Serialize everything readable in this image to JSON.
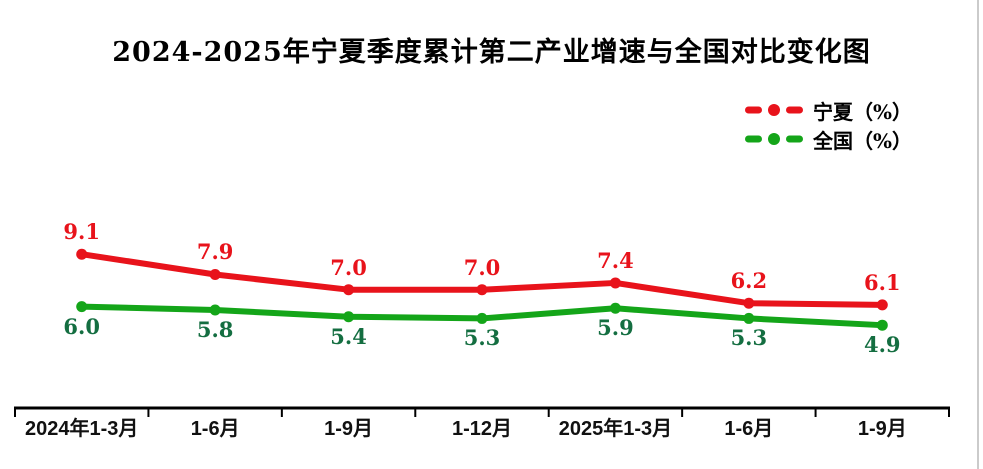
{
  "title": "2024-2025年宁夏季度累计第二产业增速与全国对比变化图",
  "colors": {
    "ningxia_line": "#e8131b",
    "ningxia_label": "#e8131b",
    "national_line": "#14a519",
    "national_label": "#146e41",
    "axis": "#000000",
    "window_border": "#cbcbcb",
    "background": "#ffffff"
  },
  "legend": {
    "position": "top-right",
    "items": [
      {
        "label": "宁夏（%）",
        "color": "#e8131b"
      },
      {
        "label": "全国（%）",
        "color": "#14a519"
      }
    ]
  },
  "chart_data": {
    "type": "line",
    "title": "2024-2025年宁夏季度累计第二产业增速与全国对比变化图",
    "categories": [
      "2024年1-3月",
      "1-6月",
      "1-9月",
      "1-12月",
      "2025年1-3月",
      "1-6月",
      "1-9月"
    ],
    "series": [
      {
        "name": "宁夏（%）",
        "key": "ningxia",
        "color": "#e8131b",
        "label_color": "#e8131b",
        "label_position": "above",
        "values": [
          9.1,
          7.9,
          7.0,
          7.0,
          7.4,
          6.2,
          6.1
        ]
      },
      {
        "name": "全国（%）",
        "key": "national",
        "color": "#14a519",
        "label_color": "#146e41",
        "label_position": "below",
        "values": [
          6.0,
          5.8,
          5.4,
          5.3,
          5.9,
          5.3,
          4.9
        ]
      }
    ],
    "xlabel": "",
    "ylabel": "",
    "ylim": [
      0,
      10
    ],
    "grid": false,
    "y_axis_visible": false,
    "data_labels": true,
    "marker": "circle",
    "legend_position": "top-right"
  }
}
